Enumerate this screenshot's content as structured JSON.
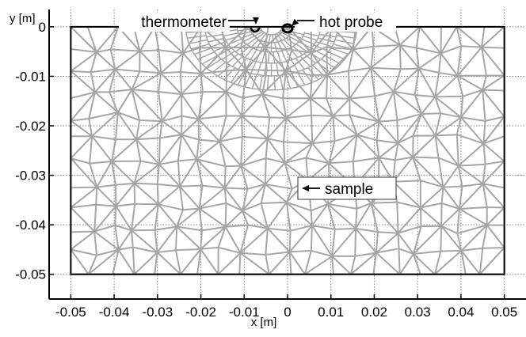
{
  "figure": {
    "x_axis_label": "x [m]",
    "y_axis_label": "y [m]",
    "x_tick_labels": [
      "-0.05",
      "-0.04",
      "-0.03",
      "-0.02",
      "-0.01",
      "0",
      "0.01",
      "0.02",
      "0.03",
      "0.04",
      "0.05"
    ],
    "y_tick_labels": [
      "0",
      "-0.01",
      "-0.02",
      "-0.03",
      "-0.04",
      "-0.05"
    ],
    "annotations": {
      "thermometer": "thermometer",
      "hot_probe": "hot probe",
      "sample": "sample"
    },
    "colors": {
      "mesh": "#a6a6a6",
      "domain_border": "#000000",
      "grid": "#7f7f7f",
      "probe_marker": "#000000",
      "background": "#ffffff"
    }
  },
  "chart_data": {
    "type": "mesh",
    "x": {
      "range": [
        -0.055,
        0.055
      ],
      "ticks": [
        -0.05,
        -0.04,
        -0.03,
        -0.02,
        -0.01,
        0,
        0.01,
        0.02,
        0.03,
        0.04,
        0.05
      ]
    },
    "y": {
      "range": [
        -0.055,
        0.0035
      ],
      "ticks": [
        0,
        -0.01,
        -0.02,
        -0.03,
        -0.04,
        -0.05
      ]
    },
    "grid": true,
    "domain_rectangle": {
      "x": [
        -0.05,
        0.05
      ],
      "y": [
        -0.05,
        0
      ]
    },
    "thermometer_position": {
      "x": -0.0075,
      "y": 0
    },
    "hot_probe_position": {
      "x": 0,
      "y": 0
    },
    "mesh": "triangular finite element mesh, refined near the probes"
  }
}
